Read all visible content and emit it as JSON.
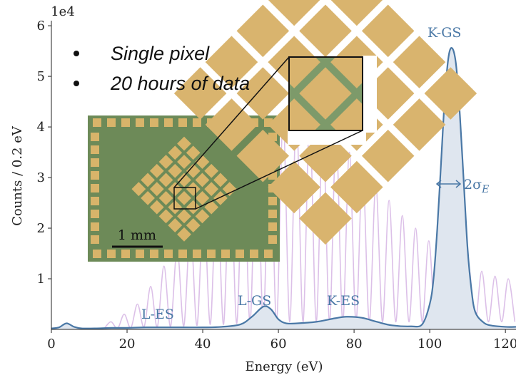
{
  "chart_data": {
    "type": "line",
    "xlabel": "Energy (eV)",
    "ylabel": "Counts / 0.2 eV",
    "y_offset_label": "1e4",
    "xlim": [
      0,
      122.8
    ],
    "ylim": [
      0,
      6.1
    ],
    "xticks": [
      0,
      20,
      40,
      60,
      80,
      100,
      120
    ],
    "yticks": [
      1,
      2,
      3,
      4,
      5,
      6
    ],
    "series": [
      {
        "color": "#dcc0e8",
        "x": [
          14,
          15.75,
          17.5,
          19.25,
          21,
          22.75,
          24.5,
          26.25,
          28,
          29.75,
          31.5,
          33.25,
          35,
          36.75,
          38.5,
          40.25,
          42,
          43.75,
          45.5,
          47.25,
          49,
          50.75,
          52.5,
          54.25,
          56,
          57.75,
          59.5,
          61.25,
          63,
          64.75,
          66.5,
          68.25,
          70,
          71.75,
          73.5,
          75.25,
          77,
          78.75,
          80.5,
          82.25,
          84,
          85.75,
          87.5,
          89.25,
          91,
          92.75,
          94.5,
          96.25,
          98,
          99.75,
          101.5,
          103.25,
          105,
          106.75,
          108.5,
          110.25,
          112,
          113.75,
          115.5,
          117.25,
          119,
          120.75,
          122.5
        ],
        "values": [
          0.02,
          0.15,
          0.02,
          0.3,
          0.03,
          0.5,
          0.05,
          0.85,
          0.05,
          1.25,
          0.06,
          1.6,
          0.07,
          2.0,
          0.08,
          2.45,
          0.1,
          2.85,
          0.1,
          3.25,
          0.12,
          3.6,
          0.12,
          3.85,
          0.15,
          4.05,
          0.15,
          4.15,
          0.15,
          4.2,
          0.15,
          4.15,
          0.15,
          4.0,
          0.15,
          3.8,
          0.15,
          3.5,
          0.15,
          3.2,
          0.15,
          2.85,
          0.15,
          2.55,
          0.15,
          2.25,
          0.15,
          2.0,
          0.15,
          1.75,
          0.15,
          1.55,
          0.15,
          1.4,
          0.15,
          1.25,
          0.15,
          1.15,
          0.15,
          1.05,
          0.15,
          1.0,
          0.15
        ]
      },
      {
        "color": "#4a78a6",
        "fill": "#dfe6ef",
        "x": [
          0,
          2,
          4,
          6,
          8,
          12,
          16,
          20,
          25,
          30,
          35,
          40,
          45,
          50,
          53,
          56,
          58,
          60,
          62,
          65,
          70,
          75,
          78,
          82,
          86,
          90,
          95,
          98,
          100,
          101,
          102,
          103,
          104,
          105,
          106,
          107,
          108,
          109,
          110,
          111,
          112,
          114,
          116,
          120,
          122.8
        ],
        "values": [
          0.02,
          0.04,
          0.12,
          0.05,
          0.02,
          0.02,
          0.03,
          0.03,
          0.04,
          0.04,
          0.04,
          0.04,
          0.05,
          0.1,
          0.25,
          0.45,
          0.4,
          0.2,
          0.12,
          0.12,
          0.15,
          0.22,
          0.25,
          0.23,
          0.15,
          0.08,
          0.06,
          0.1,
          0.5,
          1.0,
          2.0,
          3.3,
          4.6,
          5.4,
          5.55,
          5.2,
          4.2,
          2.9,
          1.6,
          0.8,
          0.35,
          0.15,
          0.08,
          0.05,
          0.05
        ]
      }
    ],
    "annotations": [
      "L-ES",
      "L-GS",
      "K-ES",
      "K-GS"
    ],
    "width_label": "2σ",
    "width_label_subscript": "E",
    "bullets": [
      "Single pixel",
      "20 hours of data"
    ],
    "scale_bar_label": "1 mm"
  }
}
